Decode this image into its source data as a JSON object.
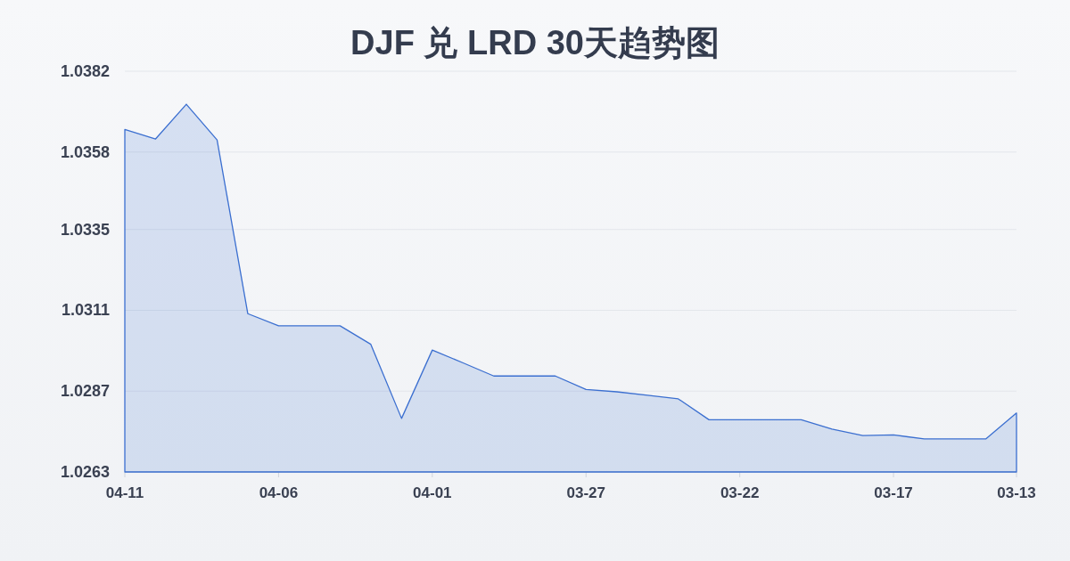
{
  "chart_data": {
    "type": "area",
    "title": "DJF 兑 LRD 30天趋势图",
    "categories": [
      "04-11",
      null,
      null,
      null,
      null,
      "04-06",
      null,
      null,
      null,
      null,
      "04-01",
      null,
      null,
      null,
      null,
      "03-27",
      null,
      null,
      null,
      null,
      "03-22",
      null,
      null,
      null,
      null,
      "03-17",
      null,
      null,
      null,
      "03-13"
    ],
    "series": [
      {
        "color": "#3b6fd0",
        "values": [
          1.03647,
          1.03619,
          1.03722,
          1.03616,
          1.031,
          1.03064,
          1.03064,
          1.03064,
          1.03009,
          1.02789,
          1.02992,
          1.02954,
          1.02915,
          1.02915,
          1.02915,
          1.02875,
          1.02868,
          1.02858,
          1.02847,
          1.02785,
          1.02785,
          1.02785,
          1.02785,
          1.02757,
          1.02738,
          1.0274,
          1.02728,
          1.02728,
          1.02728,
          1.02805
        ]
      }
    ],
    "ylim": [
      1.0263,
      1.0382
    ],
    "yticks": [
      1.0263,
      1.0287,
      1.0311,
      1.0335,
      1.0358,
      1.0382
    ],
    "grid": "y"
  }
}
